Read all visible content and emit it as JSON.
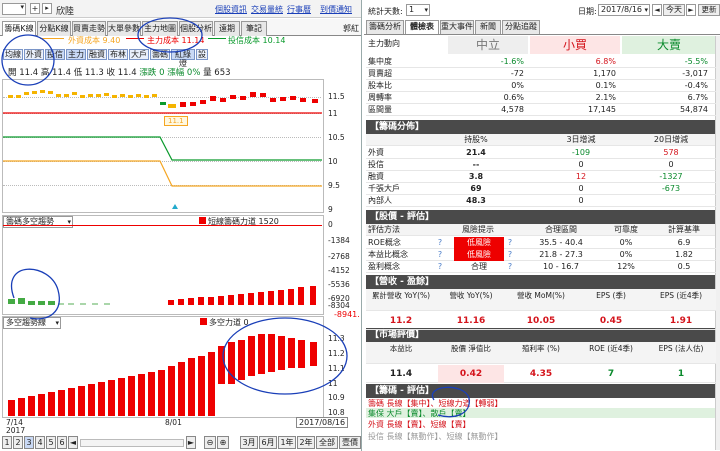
{
  "topbar": {
    "stock": "欣陸",
    "links": [
      "個股資訊",
      "交易量統",
      "行事曆",
      "到價通知"
    ]
  },
  "left_tabs": [
    "籌碼K線",
    "分點K線",
    "買賣走勢",
    "大單參數",
    "主力地圖",
    "個股分析",
    "遠期",
    "筆記"
  ],
  "left_right_label": "郭紅",
  "legend": {
    "retail": "外資成本 9.40",
    "main": "主力成本 11.14",
    "investor": "投信成本 10.14"
  },
  "pills": [
    "均線",
    "外資",
    "投信",
    "主力",
    "融資",
    "布林",
    "大戶",
    "籌碼",
    "紅綠燈",
    "設"
  ],
  "ohlc": {
    "open": "開 11.4",
    "high": "高 11.4",
    "low": "低 11.3",
    "close": "收 11.4",
    "change": "漲跌 0",
    "pct": "漲幅 0%",
    "vol": "量 653"
  },
  "main_axis": [
    "11.5",
    "11",
    "10.5",
    "10",
    "9.5",
    "9"
  ],
  "main_tooltip": "11.1",
  "short_label": "短線籌碼力道 1520",
  "panel2": {
    "select": "籌碼多空趨勢",
    "axis": [
      "0",
      "-1384",
      "-2768",
      "-4152",
      "-5536",
      "-6920",
      "-8304"
    ],
    "last": "-8941."
  },
  "panel3": {
    "select": "多空趨勢線",
    "label": "多空力道 0",
    "axis": [
      "11.3",
      "11.2",
      "11.1",
      "11",
      "10.9",
      "10.8"
    ]
  },
  "xaxis": {
    "d1": "7/14",
    "y": "2017",
    "d2": "8/01",
    "date": "2017/08/16"
  },
  "bottom": {
    "pages": [
      "1",
      "2",
      "3",
      "4",
      "5",
      "6"
    ],
    "nav": [
      "◄",
      "►"
    ],
    "zoom": [
      "-",
      "+"
    ],
    "ranges": [
      "3月",
      "6月",
      "1年",
      "2年",
      "全部",
      "壹價"
    ]
  },
  "rtop": {
    "label": "統計天數:",
    "days": "1",
    "date_label": "日期:",
    "date": "2017/8/16",
    "today": "今天",
    "refresh": "更新"
  },
  "rtabs": [
    "籌碼分析",
    "體檢表",
    "重大事件",
    "新聞",
    "分點追蹤"
  ],
  "flow": {
    "hdr": "主力動向",
    "cols": [
      "中立",
      "小買",
      "大賣"
    ],
    "rows": [
      [
        "集中度",
        "-1.6%",
        "6.8%",
        "-5.5%"
      ],
      [
        "買賣超",
        "-72",
        "1,170",
        "-3,017"
      ],
      [
        "股本比",
        "0%",
        "0.1%",
        "-0.4%"
      ],
      [
        "周轉率",
        "0.6%",
        "2.1%",
        "6.7%"
      ],
      [
        "區間量",
        "4,578",
        "17,145",
        "54,874"
      ]
    ]
  },
  "dist": {
    "title": "【籌碼分佈】",
    "cols": [
      "持股%",
      "3日增減",
      "20日增減"
    ],
    "rows": [
      [
        "外資",
        "21.4",
        "-109",
        "578"
      ],
      [
        "投信",
        "--",
        "0",
        "0"
      ],
      [
        "融資",
        "3.8",
        "12",
        "-1327"
      ],
      [
        "千張大戶",
        "69",
        "0",
        "-673"
      ],
      [
        "內部人",
        "48.3",
        "0",
        ""
      ]
    ]
  },
  "val": {
    "title": "【股價 - 評估】",
    "cols": [
      "評估方法",
      "風險提示",
      "合理區間",
      "可靠度",
      "計算基準"
    ],
    "rows": [
      [
        "ROE概念",
        "低風險",
        "35.5 - 40.4",
        "0%",
        "6.9"
      ],
      [
        "本益比概念",
        "低風險",
        "21.8 - 27.3",
        "0%",
        "1.82"
      ],
      [
        "盈利概念",
        "合理",
        "10 - 16.7",
        "12%",
        "0.5"
      ]
    ]
  },
  "rev": {
    "title": "【營收 - 盈餘】",
    "cols": [
      "累計營收 YoY(%)",
      "營收 YoY(%)",
      "營收 MoM(%)",
      "EPS (季)",
      "EPS (近4季)"
    ],
    "vals": [
      "11.2",
      "11.16",
      "10.05",
      "0.45",
      "1.91"
    ]
  },
  "mkt": {
    "title": "【市場評價】",
    "cols": [
      "本益比",
      "股價 淨值比",
      "殖利率 (%)",
      "ROE (近4季)",
      "EPS (法人估)"
    ],
    "vals": [
      "11.4",
      "0.42",
      "4.35",
      "7",
      "1"
    ]
  },
  "chip": {
    "title": "【籌碼 - 評估】",
    "lines": [
      "籌碼 長線【集中】、短線力道【轉弱】",
      "集保 大戶【賣】、散戶【賣】",
      "外資 長線【賣】、短線【賣】",
      "投信 長線【無動作】、短線【無動作】"
    ]
  }
}
